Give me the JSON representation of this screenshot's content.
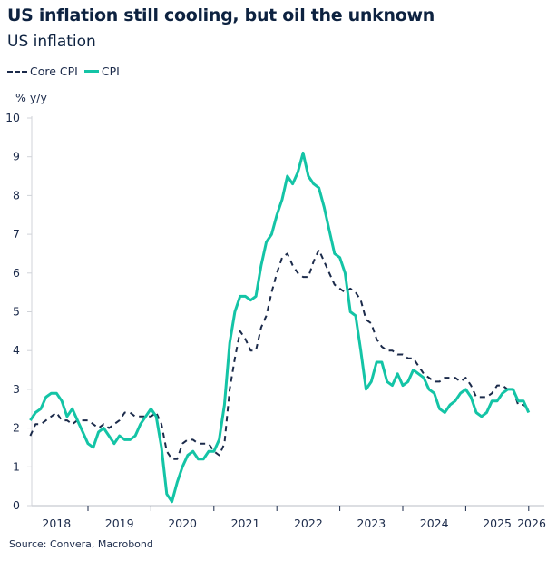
{
  "chart_data": {
    "type": "line",
    "title": "US inflation still cooling, but oil the unknown",
    "subtitle": "US inflation",
    "ylabel": "% y/y",
    "xlabel": "",
    "ylim": [
      0,
      10
    ],
    "yticks": [
      "0",
      "1",
      "2",
      "3",
      "4",
      "5",
      "6",
      "7",
      "8",
      "9",
      "10"
    ],
    "xticks": [
      "2018",
      "2019",
      "2020",
      "2021",
      "2022",
      "2023",
      "2024",
      "2025",
      "2026"
    ],
    "xlim": [
      "2018-01",
      "2026-02"
    ],
    "grid": false,
    "legend_position": "top-left",
    "source": "Source: Convera, Macrobond",
    "x": [
      "2018-02",
      "2018-03",
      "2018-04",
      "2018-05",
      "2018-06",
      "2018-07",
      "2018-08",
      "2018-09",
      "2018-10",
      "2018-11",
      "2018-12",
      "2019-01",
      "2019-02",
      "2019-03",
      "2019-04",
      "2019-05",
      "2019-06",
      "2019-07",
      "2019-08",
      "2019-09",
      "2019-10",
      "2019-11",
      "2019-12",
      "2020-01",
      "2020-02",
      "2020-03",
      "2020-04",
      "2020-05",
      "2020-06",
      "2020-07",
      "2020-08",
      "2020-09",
      "2020-10",
      "2020-11",
      "2020-12",
      "2021-01",
      "2021-02",
      "2021-03",
      "2021-04",
      "2021-05",
      "2021-06",
      "2021-07",
      "2021-08",
      "2021-09",
      "2021-10",
      "2021-11",
      "2021-12",
      "2022-01",
      "2022-02",
      "2022-03",
      "2022-04",
      "2022-05",
      "2022-06",
      "2022-07",
      "2022-08",
      "2022-09",
      "2022-10",
      "2022-11",
      "2022-12",
      "2023-01",
      "2023-02",
      "2023-03",
      "2023-04",
      "2023-05",
      "2023-06",
      "2023-07",
      "2023-08",
      "2023-09",
      "2023-10",
      "2023-11",
      "2023-12",
      "2024-01",
      "2024-02",
      "2024-03",
      "2024-04",
      "2024-05",
      "2024-06",
      "2024-07",
      "2024-08",
      "2024-09",
      "2024-10",
      "2024-11",
      "2024-12",
      "2025-01",
      "2025-02",
      "2025-03",
      "2025-04",
      "2025-05",
      "2025-06",
      "2025-07",
      "2025-08",
      "2025-09",
      "2025-10",
      "2025-11",
      "2025-12",
      "2026-01"
    ],
    "series": [
      {
        "name": "Core CPI",
        "color": "#1b2a4a",
        "style": "dashed",
        "values": [
          1.8,
          2.1,
          2.1,
          2.2,
          2.3,
          2.4,
          2.2,
          2.2,
          2.1,
          2.2,
          2.2,
          2.2,
          2.1,
          2.0,
          2.1,
          2.0,
          2.1,
          2.2,
          2.4,
          2.4,
          2.3,
          2.3,
          2.3,
          2.3,
          2.4,
          2.1,
          1.4,
          1.2,
          1.2,
          1.6,
          1.7,
          1.7,
          1.6,
          1.6,
          1.6,
          1.4,
          1.3,
          1.6,
          3.0,
          3.8,
          4.5,
          4.3,
          4.0,
          4.0,
          4.6,
          4.9,
          5.5,
          6.0,
          6.4,
          6.5,
          6.2,
          6.0,
          5.9,
          5.9,
          6.3,
          6.6,
          6.3,
          6.0,
          5.7,
          5.6,
          5.5,
          5.6,
          5.5,
          5.3,
          4.8,
          4.7,
          4.3,
          4.1,
          4.0,
          4.0,
          3.9,
          3.9,
          3.8,
          3.8,
          3.6,
          3.4,
          3.3,
          3.2,
          3.2,
          3.3,
          3.3,
          3.3,
          3.2,
          3.3,
          3.1,
          2.8,
          2.8,
          2.8,
          2.9,
          3.1,
          3.1,
          3.0,
          3.0,
          2.6,
          2.6,
          2.5
        ]
      },
      {
        "name": "CPI",
        "color": "#14c4a6",
        "style": "solid",
        "values": [
          2.2,
          2.4,
          2.5,
          2.8,
          2.9,
          2.9,
          2.7,
          2.3,
          2.5,
          2.2,
          1.9,
          1.6,
          1.5,
          1.9,
          2.0,
          1.8,
          1.6,
          1.8,
          1.7,
          1.7,
          1.8,
          2.1,
          2.3,
          2.5,
          2.3,
          1.5,
          0.3,
          0.1,
          0.6,
          1.0,
          1.3,
          1.4,
          1.2,
          1.2,
          1.4,
          1.4,
          1.7,
          2.6,
          4.2,
          5.0,
          5.4,
          5.4,
          5.3,
          5.4,
          6.2,
          6.8,
          7.0,
          7.5,
          7.9,
          8.5,
          8.3,
          8.6,
          9.1,
          8.5,
          8.3,
          8.2,
          7.7,
          7.1,
          6.5,
          6.4,
          6.0,
          5.0,
          4.9,
          4.0,
          3.0,
          3.2,
          3.7,
          3.7,
          3.2,
          3.1,
          3.4,
          3.1,
          3.2,
          3.5,
          3.4,
          3.3,
          3.0,
          2.9,
          2.5,
          2.4,
          2.6,
          2.7,
          2.9,
          3.0,
          2.8,
          2.4,
          2.3,
          2.4,
          2.7,
          2.7,
          2.9,
          3.0,
          3.0,
          2.7,
          2.7,
          2.4
        ]
      }
    ]
  }
}
